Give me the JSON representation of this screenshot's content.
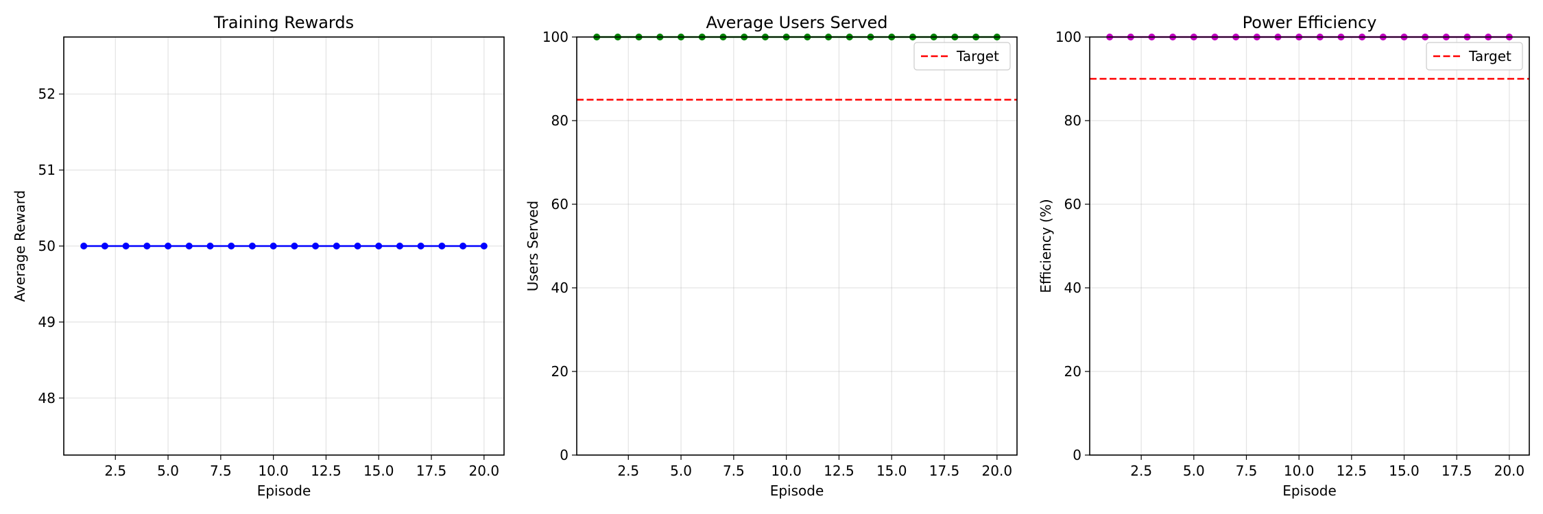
{
  "chart_data": [
    {
      "type": "line",
      "title": "Training Rewards",
      "xlabel": "Episode",
      "ylabel": "Average Reward",
      "xlim": [
        0.05,
        20.95
      ],
      "ylim": [
        47.25,
        52.75
      ],
      "xticks": [
        2.5,
        5.0,
        7.5,
        10.0,
        12.5,
        15.0,
        17.5,
        20.0
      ],
      "xtick_labels": [
        "2.5",
        "5.0",
        "7.5",
        "10.0",
        "12.5",
        "15.0",
        "17.5",
        "20.0"
      ],
      "yticks": [
        48,
        49,
        50,
        51,
        52
      ],
      "ytick_labels": [
        "48",
        "49",
        "50",
        "51",
        "52"
      ],
      "grid": true,
      "series": [
        {
          "color": "#0000ff",
          "marker": "circle",
          "x": [
            1,
            2,
            3,
            4,
            5,
            6,
            7,
            8,
            9,
            10,
            11,
            12,
            13,
            14,
            15,
            16,
            17,
            18,
            19,
            20
          ],
          "values": [
            50,
            50,
            50,
            50,
            50,
            50,
            50,
            50,
            50,
            50,
            50,
            50,
            50,
            50,
            50,
            50,
            50,
            50,
            50,
            50
          ]
        }
      ],
      "reference_lines": []
    },
    {
      "type": "line",
      "title": "Average Users Served",
      "xlabel": "Episode",
      "ylabel": "Users Served",
      "xlim": [
        0.05,
        20.95
      ],
      "ylim": [
        0,
        100
      ],
      "xticks": [
        2.5,
        5.0,
        7.5,
        10.0,
        12.5,
        15.0,
        17.5,
        20.0
      ],
      "xtick_labels": [
        "2.5",
        "5.0",
        "7.5",
        "10.0",
        "12.5",
        "15.0",
        "17.5",
        "20.0"
      ],
      "yticks": [
        0,
        20,
        40,
        60,
        80,
        100
      ],
      "ytick_labels": [
        "0",
        "20",
        "40",
        "60",
        "80",
        "100"
      ],
      "grid": true,
      "legend": "top-right",
      "series": [
        {
          "color": "#008000",
          "marker": "circle",
          "x": [
            1,
            2,
            3,
            4,
            5,
            6,
            7,
            8,
            9,
            10,
            11,
            12,
            13,
            14,
            15,
            16,
            17,
            18,
            19,
            20
          ],
          "values": [
            100,
            100,
            100,
            100,
            100,
            100,
            100,
            100,
            100,
            100,
            100,
            100,
            100,
            100,
            100,
            100,
            100,
            100,
            100,
            100
          ]
        }
      ],
      "reference_lines": [
        {
          "name": "Target",
          "y": 85,
          "color": "#ff0000",
          "style": "dashed"
        }
      ]
    },
    {
      "type": "line",
      "title": "Power Efficiency",
      "xlabel": "Episode",
      "ylabel": "Efficiency (%)",
      "xlim": [
        0.05,
        20.95
      ],
      "ylim": [
        0,
        100
      ],
      "xticks": [
        2.5,
        5.0,
        7.5,
        10.0,
        12.5,
        15.0,
        17.5,
        20.0
      ],
      "xtick_labels": [
        "2.5",
        "5.0",
        "7.5",
        "10.0",
        "12.5",
        "15.0",
        "17.5",
        "20.0"
      ],
      "yticks": [
        0,
        20,
        40,
        60,
        80,
        100
      ],
      "ytick_labels": [
        "0",
        "20",
        "40",
        "60",
        "80",
        "100"
      ],
      "grid": true,
      "legend": "top-right",
      "series": [
        {
          "color": "#bf00bf",
          "marker": "circle",
          "x": [
            1,
            2,
            3,
            4,
            5,
            6,
            7,
            8,
            9,
            10,
            11,
            12,
            13,
            14,
            15,
            16,
            17,
            18,
            19,
            20
          ],
          "values": [
            100,
            100,
            100,
            100,
            100,
            100,
            100,
            100,
            100,
            100,
            100,
            100,
            100,
            100,
            100,
            100,
            100,
            100,
            100,
            100
          ]
        }
      ],
      "reference_lines": [
        {
          "name": "Target",
          "y": 90,
          "color": "#ff0000",
          "style": "dashed"
        }
      ]
    }
  ]
}
